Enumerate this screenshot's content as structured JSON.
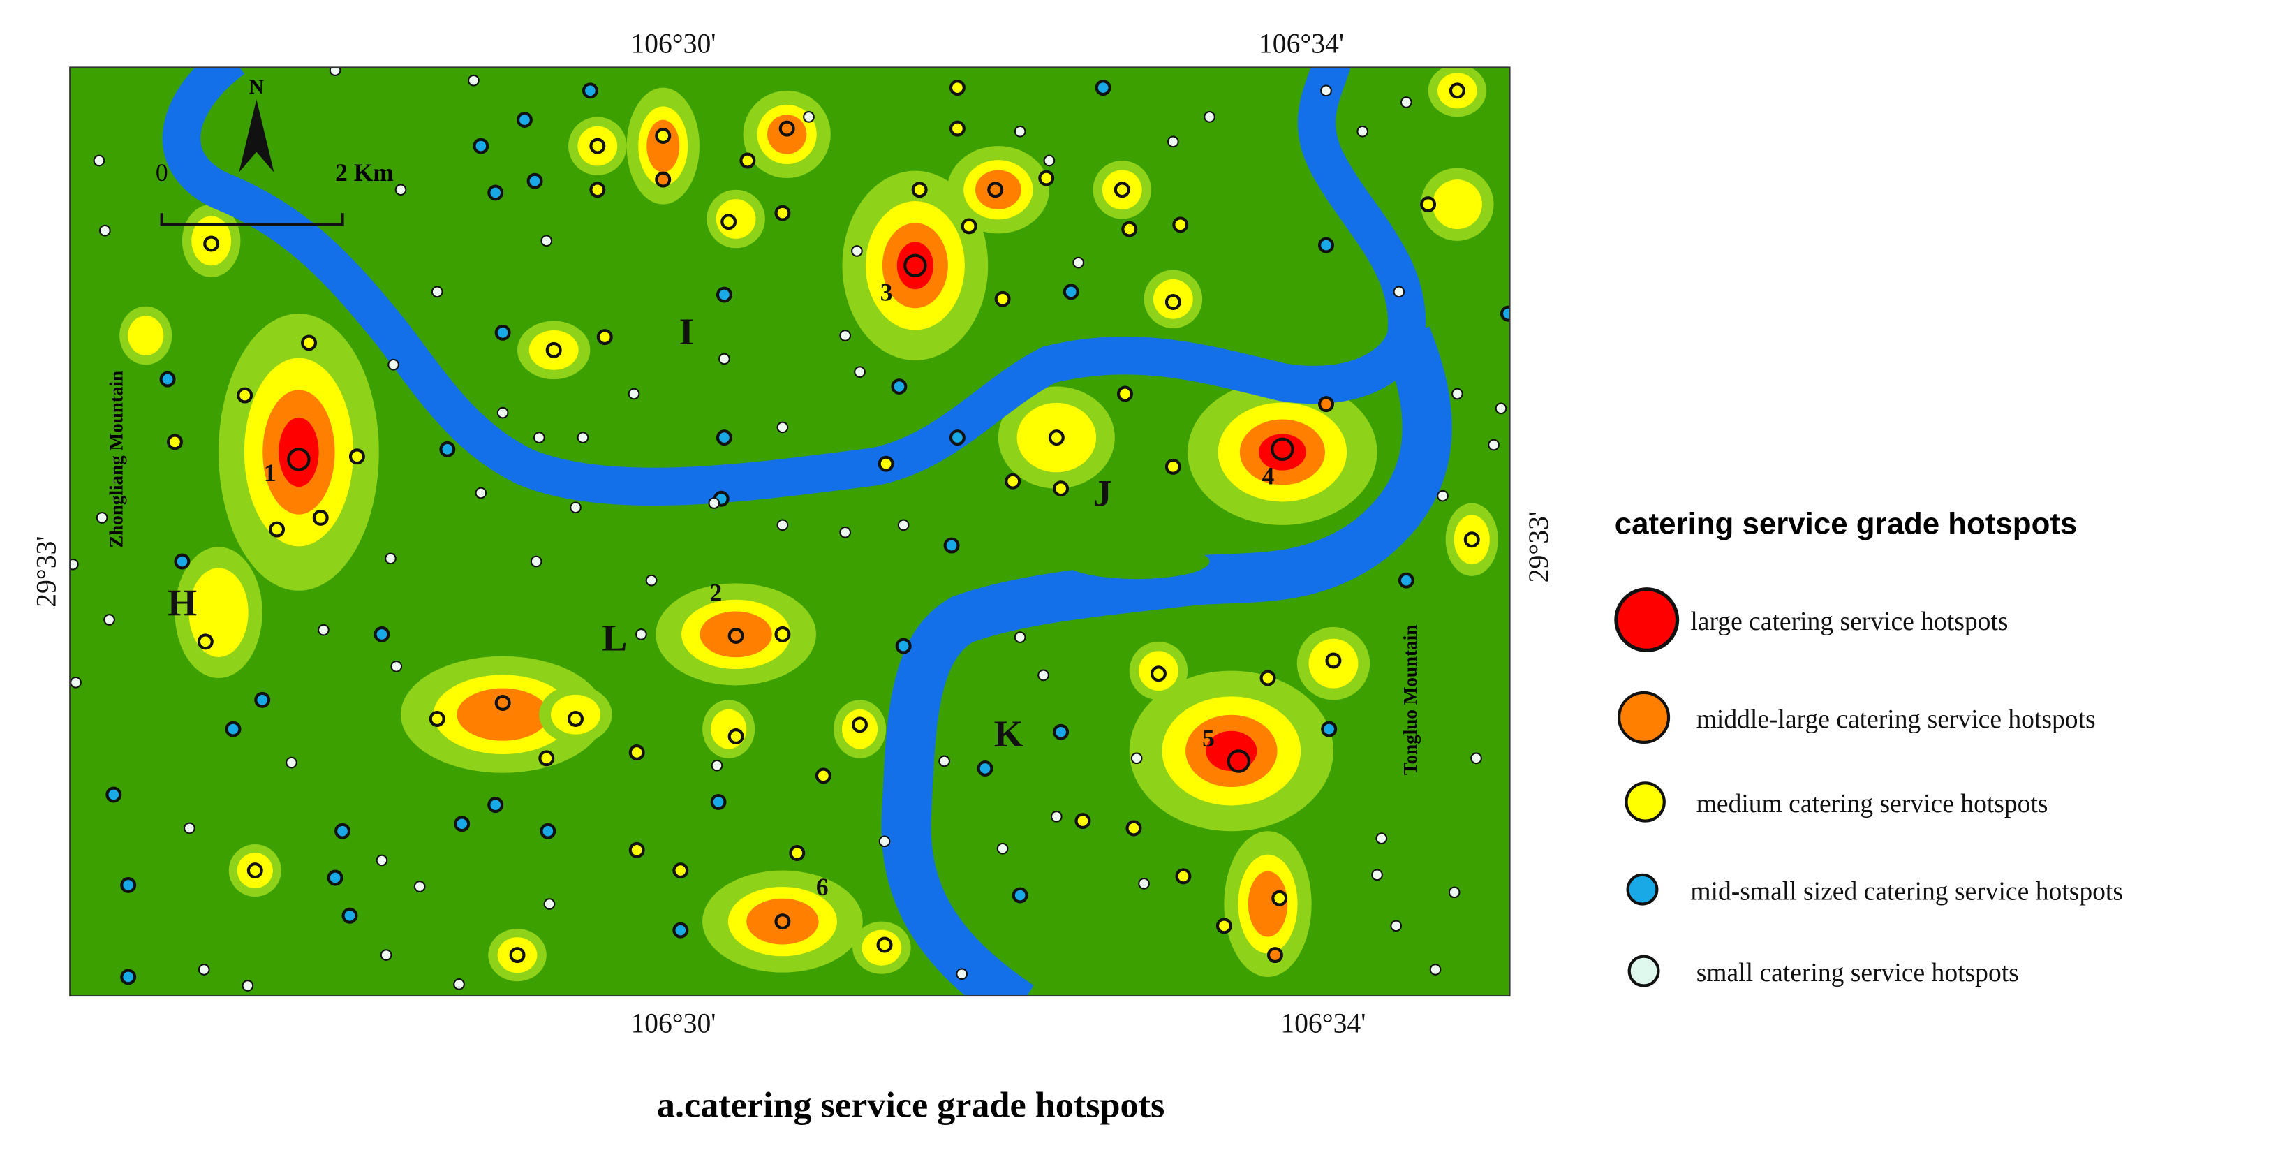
{
  "map": {
    "coordinate_labels": {
      "top": [
        "106°30'",
        "106°34'"
      ],
      "bottom": [
        "106°30'",
        "106°34'"
      ],
      "left": "29°33'",
      "right": "29°33'"
    },
    "compass": "N",
    "scale_bar": [
      "0",
      "2 Km"
    ],
    "region_labels": [
      "H",
      "I",
      "J",
      "K",
      "L"
    ],
    "hotspot_numbers": [
      "1",
      "2",
      "3",
      "4",
      "5",
      "6"
    ],
    "mountains": [
      "Zhongliang Mountain",
      "Tongluo Mountain"
    ]
  },
  "legend": {
    "title": "catering service grade hotspots",
    "items": [
      "large catering service hotspots",
      "middle-large catering service hotspots",
      "medium catering service hotspots",
      "mid-small sized catering service hotspots",
      "small catering service hotspots"
    ]
  },
  "caption": "a.catering service grade hotspots"
}
